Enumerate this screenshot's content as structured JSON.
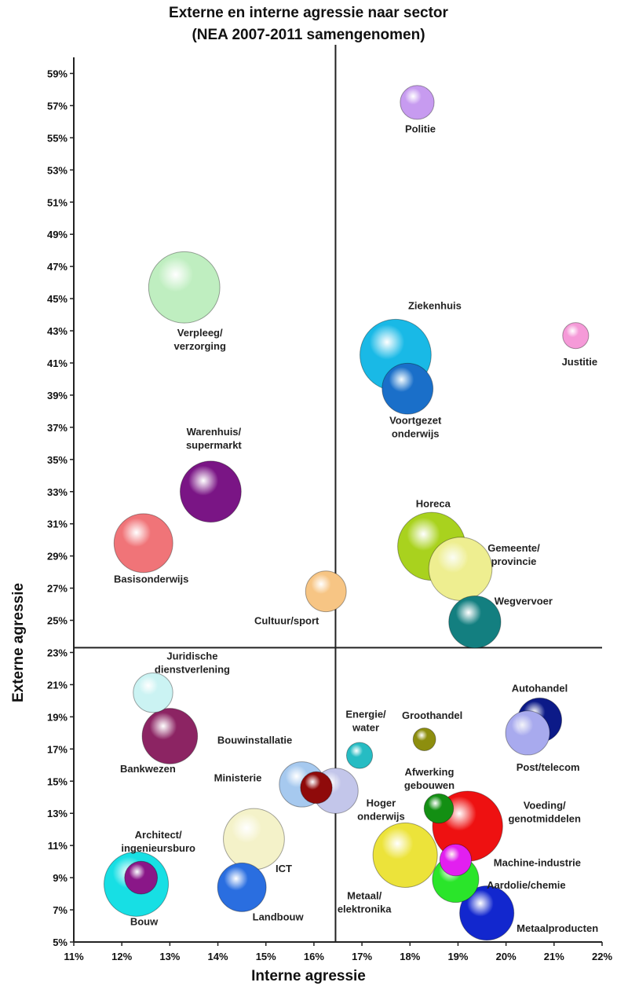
{
  "chart_data": {
    "type": "scatter",
    "title": "Externe en interne agressie naar sector",
    "subtitle": "(NEA 2007-2011 samengenomen)",
    "xlabel": "Interne agressie",
    "ylabel": "Externe agressie",
    "xlim": [
      11,
      22
    ],
    "ylim": [
      5,
      60
    ],
    "x_ticks": [
      "11%",
      "12%",
      "13%",
      "14%",
      "15%",
      "16%",
      "17%",
      "18%",
      "19%",
      "20%",
      "21%",
      "22%"
    ],
    "y_ticks": [
      "5%",
      "7%",
      "9%",
      "11%",
      "13%",
      "15%",
      "17%",
      "19%",
      "21%",
      "23%",
      "25%",
      "27%",
      "29%",
      "31%",
      "33%",
      "35%",
      "37%",
      "39%",
      "41%",
      "43%",
      "45%",
      "47%",
      "49%",
      "51%",
      "53%",
      "55%",
      "57%",
      "59%"
    ],
    "reference_lines": {
      "x": 16.45,
      "y": 23.3
    },
    "grid": false,
    "legend": "none",
    "points": [
      {
        "label": "Politie",
        "x": 18.15,
        "y": 57.2,
        "size": 3,
        "color": "#c79bf0"
      },
      {
        "label": "Verpleeg/\nverzorging",
        "x": 13.3,
        "y": 45.7,
        "size": 6.3,
        "color": "#bfeec0"
      },
      {
        "label": "Ziekenhuis",
        "x": 17.7,
        "y": 41.5,
        "size": 6.3,
        "color": "#19b9e6"
      },
      {
        "label": "Justitie",
        "x": 21.45,
        "y": 42.7,
        "size": 2.3,
        "color": "#f59ad8"
      },
      {
        "label": "Voortgezet\nonderwijs",
        "x": 17.95,
        "y": 39.4,
        "size": 4.5,
        "color": "#1a6fc9"
      },
      {
        "label": "Warenhuis/\nsupermarkt",
        "x": 13.85,
        "y": 33.0,
        "size": 5.4,
        "color": "#7a1585"
      },
      {
        "label": "Basisonderwijs",
        "x": 12.45,
        "y": 29.8,
        "size": 5.2,
        "color": "#f07478"
      },
      {
        "label": "Horeca",
        "x": 18.45,
        "y": 29.6,
        "size": 6.0,
        "color": "#a9d21e"
      },
      {
        "label": "Gemeente/\nprovincie",
        "x": 19.05,
        "y": 28.2,
        "size": 5.6,
        "color": "#eeee90"
      },
      {
        "label": "Cultuur/sport",
        "x": 16.25,
        "y": 26.8,
        "size": 3.6,
        "color": "#f7c584"
      },
      {
        "label": "Wegvervoer",
        "x": 19.35,
        "y": 24.9,
        "size": 4.6,
        "color": "#137f80"
      },
      {
        "label": "Juridische\ndienstverlening",
        "x": 12.65,
        "y": 20.5,
        "size": 3.5,
        "color": "#cbf3f3"
      },
      {
        "label": "Bankwezen",
        "x": 13.0,
        "y": 17.8,
        "size": 4.9,
        "color": "#8c2463"
      },
      {
        "label": "Autohandel",
        "x": 20.7,
        "y": 18.8,
        "size": 3.9,
        "color": "#0c1a88"
      },
      {
        "label": "Post/telecom",
        "x": 20.45,
        "y": 18.0,
        "size": 3.9,
        "color": "#a8aaee"
      },
      {
        "label": "Energie/\nwater",
        "x": 16.95,
        "y": 16.6,
        "size": 2.3,
        "color": "#26bcc3"
      },
      {
        "label": "Groothandel",
        "x": 18.3,
        "y": 17.6,
        "size": 2.0,
        "color": "#8d8e0e"
      },
      {
        "label": "Bouwinstallatie",
        "x": 15.75,
        "y": 14.8,
        "size": 4.0,
        "color": "#a6c9ef"
      },
      {
        "label": "Ministerie",
        "x": 16.05,
        "y": 14.6,
        "size": 2.8,
        "color": "#8f0a0a"
      },
      {
        "label": "Hoger\nonderwijs",
        "x": 16.45,
        "y": 14.4,
        "size": 4.0,
        "color": "#c3c6ea"
      },
      {
        "label": "Afwerking\ngebouwen",
        "x": 18.6,
        "y": 13.3,
        "size": 2.6,
        "color": "#138f13"
      },
      {
        "label": "Voeding/\ngenotmiddelen",
        "x": 19.2,
        "y": 12.2,
        "size": 6.2,
        "color": "#ee1111"
      },
      {
        "label": "ICT",
        "x": 14.75,
        "y": 11.4,
        "size": 5.4,
        "color": "#f4f2c9"
      },
      {
        "label": "Metaal/\nelektronika",
        "x": 17.9,
        "y": 10.4,
        "size": 5.7,
        "color": "#ece33a"
      },
      {
        "label": "Machine-industrie",
        "x": 18.95,
        "y": 10.1,
        "size": 2.8,
        "color": "#e21ff0"
      },
      {
        "label": "Aardolie/chemie",
        "x": 18.95,
        "y": 8.9,
        "size": 4.1,
        "color": "#2ae52a"
      },
      {
        "label": "Architect/\ningenieursburo",
        "x": 12.4,
        "y": 9.0,
        "size": 2.9,
        "color": "#8a1788"
      },
      {
        "label": "Bouw",
        "x": 12.3,
        "y": 8.6,
        "size": 5.7,
        "color": "#17dfe4"
      },
      {
        "label": "Landbouw",
        "x": 14.5,
        "y": 8.4,
        "size": 4.3,
        "color": "#2a6ee0"
      },
      {
        "label": "Metaalproducten",
        "x": 19.6,
        "y": 6.8,
        "size": 4.8,
        "color": "#1227ce"
      }
    ]
  }
}
